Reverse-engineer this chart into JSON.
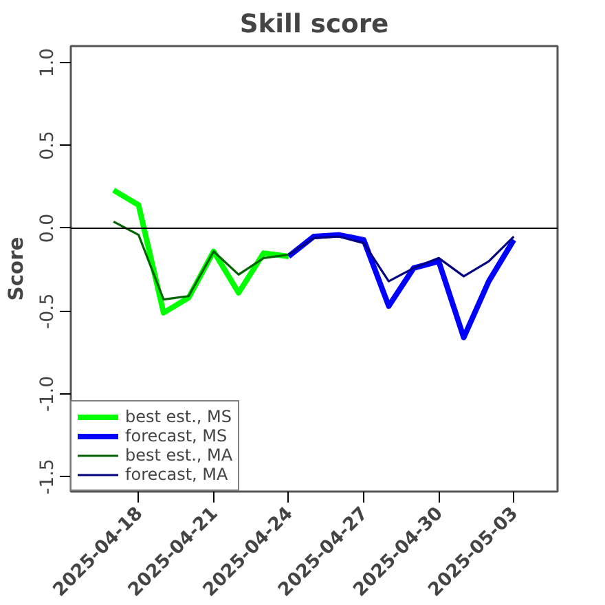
{
  "chart_data": {
    "type": "line",
    "title": "Skill score",
    "ylabel": "Score",
    "x": [
      "2025-04-17",
      "2025-04-18",
      "2025-04-19",
      "2025-04-20",
      "2025-04-21",
      "2025-04-22",
      "2025-04-23",
      "2025-04-24",
      "2025-04-25",
      "2025-04-26",
      "2025-04-27",
      "2025-04-28",
      "2025-04-29",
      "2025-04-30",
      "2025-05-01",
      "2025-05-02",
      "2025-05-03"
    ],
    "series": [
      {
        "name": "best est., MS",
        "color": "#00ff00",
        "values": [
          0.23,
          0.14,
          -0.51,
          -0.42,
          -0.14,
          -0.39,
          -0.15,
          -0.17,
          null,
          null,
          null,
          null,
          null,
          null,
          null,
          null,
          null
        ]
      },
      {
        "name": "forecast, MS",
        "color": "#0000ff",
        "values": [
          null,
          null,
          null,
          null,
          null,
          null,
          null,
          -0.17,
          -0.05,
          -0.04,
          -0.07,
          -0.47,
          -0.24,
          -0.2,
          -0.66,
          -0.32,
          -0.07
        ]
      },
      {
        "name": "best est., MA",
        "color": "#006400",
        "values": [
          0.04,
          -0.04,
          -0.43,
          -0.41,
          -0.14,
          -0.28,
          -0.18,
          -0.16,
          null,
          null,
          null,
          null,
          null,
          null,
          null,
          null,
          null
        ]
      },
      {
        "name": "forecast, MA",
        "color": "#000080",
        "values": [
          null,
          null,
          null,
          null,
          null,
          null,
          null,
          -0.16,
          -0.06,
          -0.05,
          -0.09,
          -0.32,
          -0.24,
          -0.18,
          -0.29,
          -0.2,
          -0.05
        ]
      }
    ],
    "xlim": [
      "2025-04-15T07:00",
      "2025-05-04T18:00"
    ],
    "xticks": [
      "2025-04-18",
      "2025-04-21",
      "2025-04-24",
      "2025-04-27",
      "2025-04-30",
      "2025-05-03"
    ],
    "ylim": [
      -1.59,
      1.1
    ],
    "yticks": [
      {
        "value": -1.5,
        "label": "-1.5"
      },
      {
        "value": -1.0,
        "label": "-1.0"
      },
      {
        "value": -0.5,
        "label": "-0.5"
      },
      {
        "value": 0.0,
        "label": "0.0"
      },
      {
        "value": 0.5,
        "label": "0.5"
      },
      {
        "value": 1.0,
        "label": "1.0"
      }
    ],
    "ref_lines": [
      {
        "axis": "y",
        "value": 0,
        "color": "#000000"
      }
    ],
    "legend": "bottom left",
    "grid": false
  }
}
